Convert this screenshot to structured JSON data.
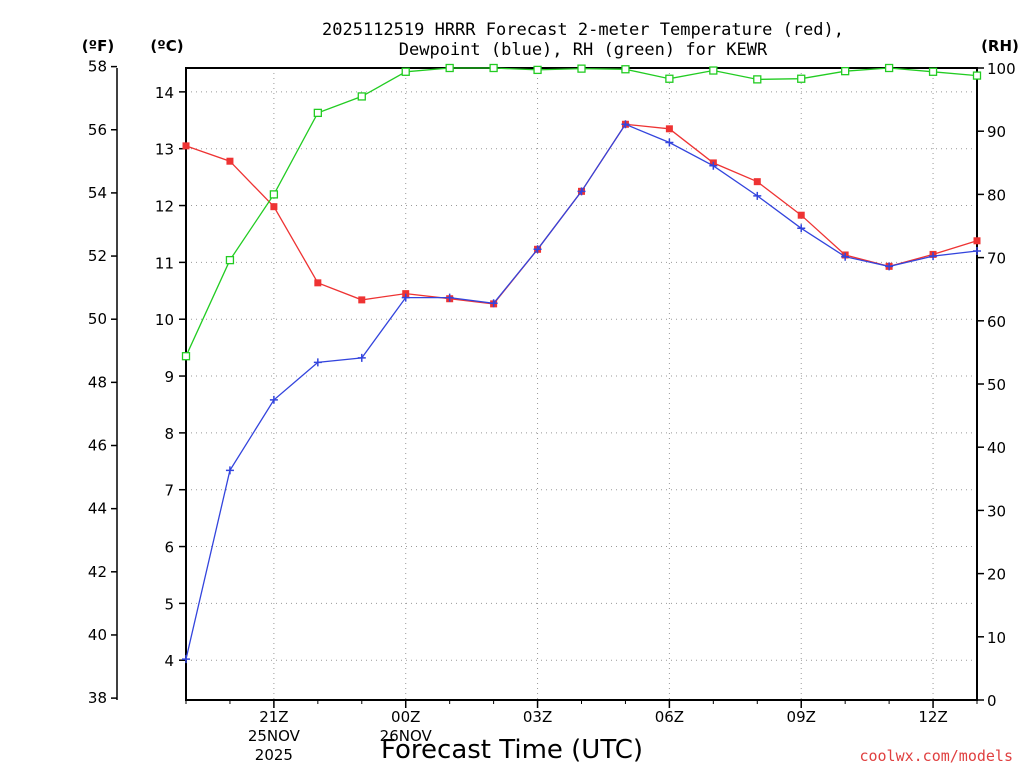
{
  "chart_data": {
    "type": "line",
    "title_line1": "2025112519 HRRR Forecast 2-meter Temperature (red),",
    "title_line2": "Dewpoint (blue), RH (green) for KEWR",
    "units": {
      "fahrenheit": "(ºF)",
      "celsius": "(ºC)",
      "rh": "(RH)"
    },
    "xlabel": "Forecast Time (UTC)",
    "credit": "coolwx.com/models",
    "x": [
      "19Z",
      "20Z",
      "21Z",
      "22Z",
      "23Z",
      "00Z",
      "01Z",
      "02Z",
      "03Z",
      "04Z",
      "05Z",
      "06Z",
      "07Z",
      "08Z",
      "09Z",
      "10Z",
      "11Z",
      "12Z",
      "13Z"
    ],
    "x_ticks": [
      {
        "label": "21Z",
        "date": "25NOV",
        "year": "2025",
        "index": 2
      },
      {
        "label": "00Z",
        "date": "26NOV",
        "year": "",
        "index": 5
      },
      {
        "label": "03Z",
        "date": "",
        "year": "",
        "index": 8
      },
      {
        "label": "06Z",
        "date": "",
        "year": "",
        "index": 11
      },
      {
        "label": "09Z",
        "date": "",
        "year": "",
        "index": 14
      },
      {
        "label": "12Z",
        "date": "",
        "year": "",
        "index": 17
      }
    ],
    "axes": {
      "celsius": {
        "range": [
          3.3,
          14.42
        ],
        "ticks": [
          "4",
          "5",
          "6",
          "7",
          "8",
          "9",
          "10",
          "11",
          "12",
          "13",
          "14"
        ]
      },
      "fahrenheit": {
        "range": [
          37.94,
          57.956
        ],
        "ticks": [
          "38",
          "40",
          "42",
          "44",
          "46",
          "48",
          "50",
          "52",
          "54",
          "56",
          "58"
        ]
      },
      "rh": {
        "range": [
          0,
          100
        ],
        "ticks": [
          "0",
          "10",
          "20",
          "30",
          "40",
          "50",
          "60",
          "70",
          "80",
          "90",
          "100"
        ]
      }
    },
    "series": [
      {
        "key": "temperature",
        "unit": "C",
        "color": "#ee3333",
        "marker": "filled-square",
        "values": [
          13.05,
          12.78,
          11.98,
          10.64,
          10.34,
          10.45,
          10.36,
          10.27,
          11.23,
          12.25,
          13.43,
          13.35,
          12.75,
          12.42,
          11.83,
          11.13,
          10.93,
          11.14,
          11.38
        ]
      },
      {
        "key": "dewpoint",
        "unit": "C",
        "color": "#3344dd",
        "marker": "plus",
        "values": [
          4.02,
          7.34,
          8.58,
          9.24,
          9.32,
          10.38,
          10.38,
          10.28,
          11.23,
          12.25,
          13.43,
          13.11,
          12.7,
          12.17,
          11.6,
          11.1,
          10.93,
          11.11,
          11.2
        ]
      },
      {
        "key": "rh",
        "unit": "%",
        "color": "#22cc22",
        "marker": "open-square",
        "values": [
          54.4,
          69.6,
          80.0,
          92.9,
          95.5,
          99.4,
          100,
          100,
          99.7,
          99.9,
          99.8,
          98.3,
          99.6,
          98.2,
          98.3,
          99.5,
          100,
          99.4,
          98.8
        ]
      }
    ],
    "grid": true
  }
}
